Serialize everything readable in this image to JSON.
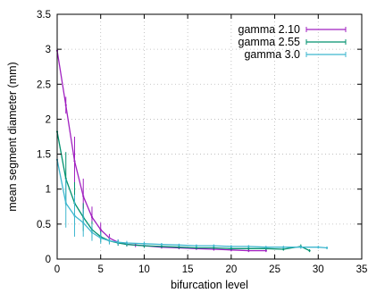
{
  "chart_data": {
    "type": "line",
    "title": "",
    "xlabel": "bifurcation level",
    "ylabel": "mean segment diameter (mm)",
    "xlim": [
      0,
      35
    ],
    "ylim": [
      0,
      3.5
    ],
    "xticks": [
      "0",
      "5",
      "10",
      "15",
      "20",
      "25",
      "30",
      "35"
    ],
    "yticks": [
      "0",
      "0.5",
      "1",
      "1.5",
      "2",
      "2.5",
      "3",
      "3.5"
    ],
    "grid": true,
    "legend_position": "top-right",
    "series": [
      {
        "name": "gamma 2.10",
        "color": "#a020c0",
        "x": [
          0,
          1,
          2,
          3,
          4,
          5,
          6,
          7,
          8,
          9,
          10,
          12,
          14,
          16,
          18,
          20,
          22,
          24
        ],
        "y": [
          2.98,
          2.2,
          1.4,
          0.9,
          0.6,
          0.42,
          0.3,
          0.24,
          0.21,
          0.2,
          0.19,
          0.17,
          0.16,
          0.15,
          0.14,
          0.13,
          0.12,
          0.12
        ],
        "err": [
          0.0,
          0.12,
          0.35,
          0.25,
          0.15,
          0.1,
          0.06,
          0.04,
          0.03,
          0.03,
          0.02,
          0.02,
          0.02,
          0.02,
          0.02,
          0.02,
          0.02,
          0.02
        ]
      },
      {
        "name": "gamma 2.55",
        "color": "#00916e",
        "x": [
          0,
          1,
          2,
          3,
          4,
          5,
          6,
          7,
          8,
          10,
          12,
          14,
          16,
          18,
          20,
          22,
          24,
          26,
          28,
          29
        ],
        "y": [
          1.82,
          1.15,
          0.8,
          0.6,
          0.42,
          0.32,
          0.26,
          0.23,
          0.21,
          0.19,
          0.18,
          0.17,
          0.16,
          0.16,
          0.15,
          0.15,
          0.15,
          0.14,
          0.18,
          0.12
        ],
        "err": [
          0.0,
          0.38,
          0.3,
          0.2,
          0.12,
          0.08,
          0.05,
          0.04,
          0.03,
          0.03,
          0.02,
          0.02,
          0.02,
          0.02,
          0.02,
          0.02,
          0.02,
          0.02,
          0.03,
          0.02
        ]
      },
      {
        "name": "gamma 3.0",
        "color": "#3fb7cf",
        "x": [
          0,
          1,
          2,
          3,
          4,
          5,
          6,
          7,
          8,
          10,
          12,
          14,
          16,
          18,
          20,
          22,
          24,
          26,
          28,
          30,
          31
        ],
        "y": [
          1.42,
          0.8,
          0.62,
          0.52,
          0.38,
          0.3,
          0.26,
          0.24,
          0.23,
          0.22,
          0.21,
          0.2,
          0.19,
          0.19,
          0.18,
          0.18,
          0.17,
          0.17,
          0.17,
          0.17,
          0.16
        ],
        "err": [
          0.0,
          0.35,
          0.3,
          0.2,
          0.12,
          0.08,
          0.05,
          0.04,
          0.03,
          0.03,
          0.02,
          0.02,
          0.02,
          0.02,
          0.02,
          0.02,
          0.02,
          0.02,
          0.02,
          0.02,
          0.02
        ]
      }
    ]
  }
}
